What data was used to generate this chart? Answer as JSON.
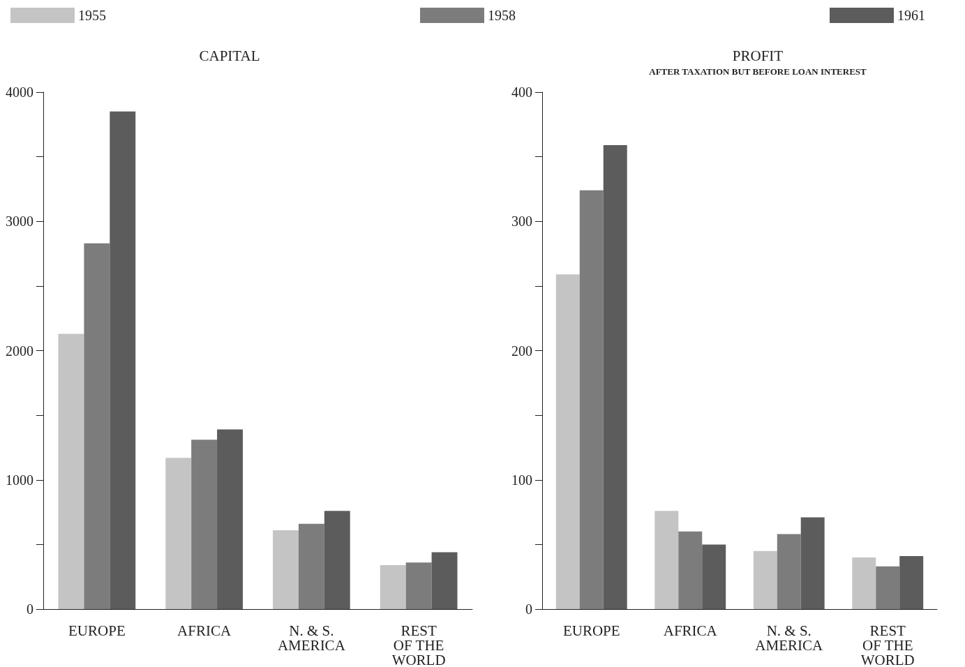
{
  "chart_data": [
    {
      "type": "bar",
      "title": "CAPITAL",
      "categories": [
        "EUROPE",
        "AFRICA",
        "N. & S.\nAMERICA",
        "REST\nOF THE\nWORLD"
      ],
      "series": [
        {
          "name": "1955",
          "color": "#c4c4c4",
          "values": [
            2130,
            1170,
            610,
            340
          ]
        },
        {
          "name": "1958",
          "color": "#7c7c7c",
          "values": [
            2830,
            1310,
            660,
            360
          ]
        },
        {
          "name": "1961",
          "color": "#5c5c5c",
          "values": [
            3850,
            1390,
            760,
            440
          ]
        }
      ],
      "ylim": [
        0,
        4000
      ],
      "yticks": [
        0,
        {
          "value": 500,
          "label": null
        },
        1000,
        {
          "value": 1500,
          "label": null
        },
        2000,
        {
          "value": 2500,
          "label": null
        },
        3000,
        {
          "value": 3500,
          "label": null
        },
        4000
      ],
      "grid": false,
      "legend": "top"
    },
    {
      "type": "bar",
      "title": "PROFIT",
      "subtitle": "AFTER TAXATION BUT BEFORE LOAN INTEREST",
      "categories": [
        "EUROPE",
        "AFRICA",
        "N. & S.\nAMERICA",
        "REST\nOF THE\nWORLD"
      ],
      "series": [
        {
          "color": "#c4c4c4",
          "values": [
            259,
            76,
            45,
            40
          ]
        },
        {
          "color": "#7c7c7c",
          "values": [
            324,
            60,
            58,
            33
          ]
        },
        {
          "color": "#5c5c5c",
          "values": [
            359,
            50,
            71,
            41
          ]
        }
      ],
      "ylim": [
        0,
        400
      ],
      "yticks": [
        0,
        {
          "value": 50,
          "label": null
        },
        100,
        {
          "value": 150,
          "label": null
        },
        200,
        {
          "value": 250,
          "label": null
        },
        300,
        {
          "value": 350,
          "label": null
        },
        400
      ],
      "grid": false,
      "legend": false
    }
  ]
}
